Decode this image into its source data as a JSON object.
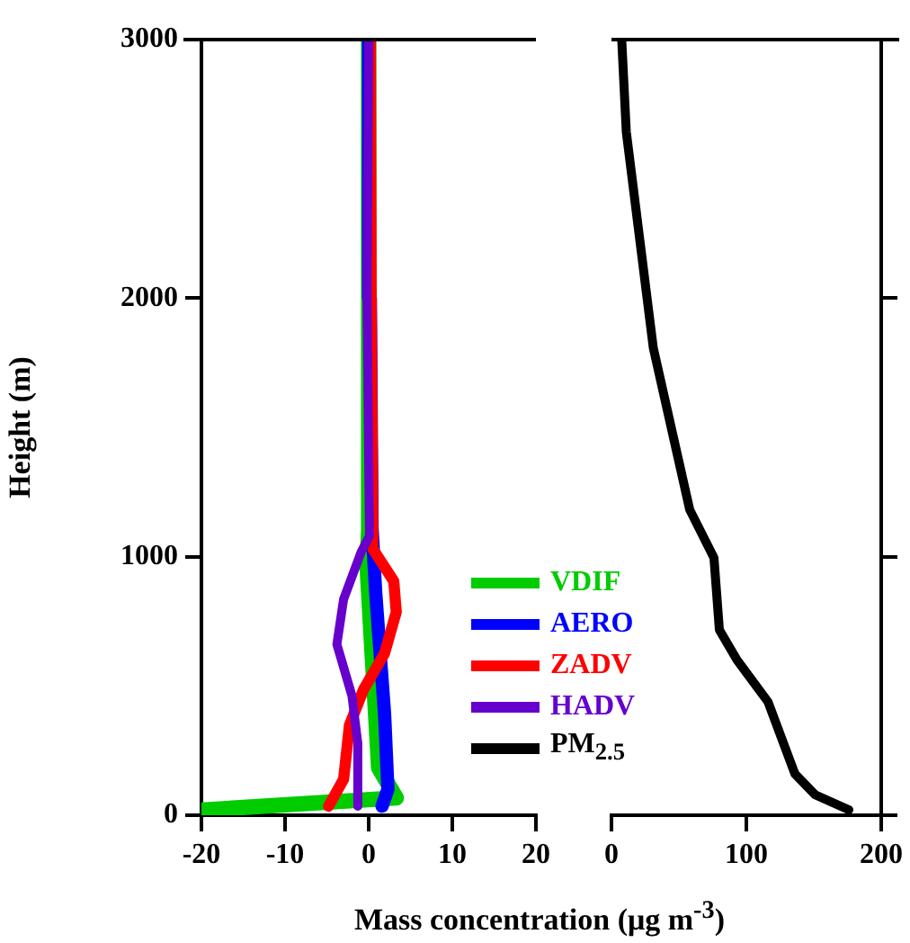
{
  "chart_data": [
    {
      "type": "line",
      "xlabel": "Mass concentration (μg m$^{-3}$)",
      "ylabel": "Height (m)",
      "xlim": [
        -20,
        20
      ],
      "xticks": [
        -20,
        -10,
        0,
        10,
        20
      ],
      "ylim": [
        0,
        3000
      ],
      "yticks": [
        0,
        1000,
        2000,
        3000
      ],
      "grid": false,
      "legend": "bottom right",
      "marker": "none",
      "line_style": "solid",
      "series": [
        {
          "name": "VDIF",
          "color": "#00cc00",
          "x": [
            -20,
            3.3,
            1.2,
            -0.2,
            0,
            0
          ],
          "values": [
            20,
            67,
            183,
            973,
            1100,
            3000
          ]
        },
        {
          "name": "AERO",
          "color": "#0000ff",
          "x": [
            1.6,
            2.3,
            1.9,
            0.85,
            0.4,
            0.2,
            0
          ],
          "values": [
            35,
            100,
            392,
            856,
            1113,
            2000,
            3000
          ]
        },
        {
          "name": "ZADV",
          "color": "#ff0000",
          "x": [
            -4.8,
            -3.0,
            -2.3,
            -0.6,
            1.9,
            3.3,
            3.0,
            0.5,
            0.3,
            0.2
          ],
          "values": [
            35,
            139,
            348,
            487,
            626,
            786,
            905,
            1030,
            2000,
            3000
          ]
        },
        {
          "name": "HADV",
          "color": "#6600cc",
          "x": [
            -1.3,
            -1.3,
            -2.0,
            -3.8,
            -3.0,
            -0.9,
            0.1,
            -0.2,
            0
          ],
          "values": [
            35,
            278,
            462,
            661,
            835,
            1018,
            1080,
            2000,
            3000
          ]
        }
      ]
    },
    {
      "type": "line",
      "xlim": [
        0,
        200
      ],
      "xticks": [
        0,
        100,
        200
      ],
      "ylim": [
        0,
        3000
      ],
      "yticks": [
        0,
        1000,
        2000,
        3000
      ],
      "tick_labels": "x",
      "grid": false,
      "legend": "left",
      "marker": "none",
      "line_style": "solid",
      "series": [
        {
          "name": "PM$_{2.5}$",
          "color": "#000000",
          "x": [
            176,
            151,
            136,
            116,
            93,
            80,
            76,
            58,
            31,
            11,
            7.6
          ],
          "values": [
            21,
            79,
            160,
            439,
            601,
            717,
            995,
            1182,
            1808,
            2643,
            3000
          ]
        }
      ]
    }
  ]
}
